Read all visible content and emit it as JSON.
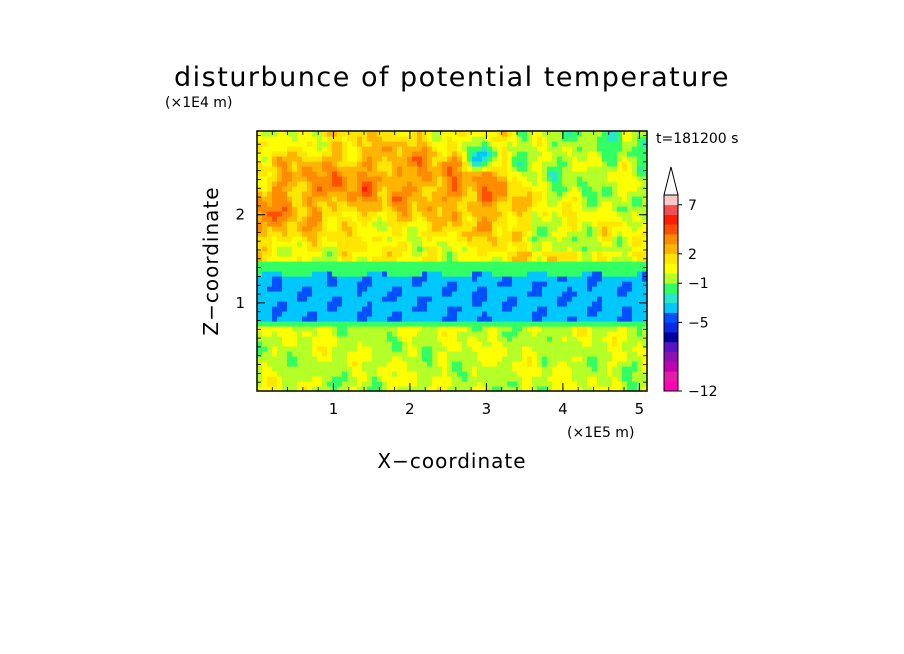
{
  "chart_data": {
    "type": "heatmap",
    "title": "disturbunce of potential temperature",
    "xlabel": "X−coordinate",
    "ylabel": "Z−coordinate",
    "x_scale_label": "(×1E5 m)",
    "y_scale_label": "(×1E4 m)",
    "time_label": "t=181200 s",
    "xlim": [
      0,
      5.1
    ],
    "ylim": [
      0,
      2.95
    ],
    "x_ticks": [
      "1",
      "2",
      "3",
      "4",
      "5"
    ],
    "y_ticks": [
      "1",
      "2"
    ],
    "colorbar": {
      "levels": [
        -12,
        -11,
        -10,
        -9,
        -8,
        -7,
        -6,
        -5,
        -4,
        -3,
        -2,
        -1,
        0,
        1,
        2,
        3,
        4,
        5,
        6,
        7,
        8,
        9,
        10
      ],
      "tick_labels": [
        "7",
        "2",
        "−1",
        "−5",
        "−12"
      ],
      "colors": [
        "#ff00b4",
        "#e61aa8",
        "#c000b0",
        "#8c10b4",
        "#5a14c8",
        "#0000a0",
        "#0a28e6",
        "#0050ff",
        "#00c8ff",
        "#28e6c8",
        "#32ff64",
        "#b4ff28",
        "#ffff00",
        "#ffe600",
        "#ffb400",
        "#ff8c00",
        "#ff5000",
        "#ff1e00",
        "#f05050",
        "#ffc8c8"
      ],
      "extend": "max"
    },
    "field_description_bands": [
      {
        "z_range": [
          0,
          0.75
        ],
        "value_range": [
          -1,
          1
        ]
      },
      {
        "z_range": [
          0.75,
          0.85
        ],
        "value_range": [
          -2,
          -1
        ]
      },
      {
        "z_range": [
          0.85,
          1.3
        ],
        "value_range": [
          -5,
          -3
        ]
      },
      {
        "z_range": [
          1.3,
          1.45
        ],
        "value_range": [
          -2,
          -1
        ]
      },
      {
        "z_range": [
          1.45,
          2.95
        ],
        "value_range": [
          -1,
          4
        ]
      }
    ]
  }
}
